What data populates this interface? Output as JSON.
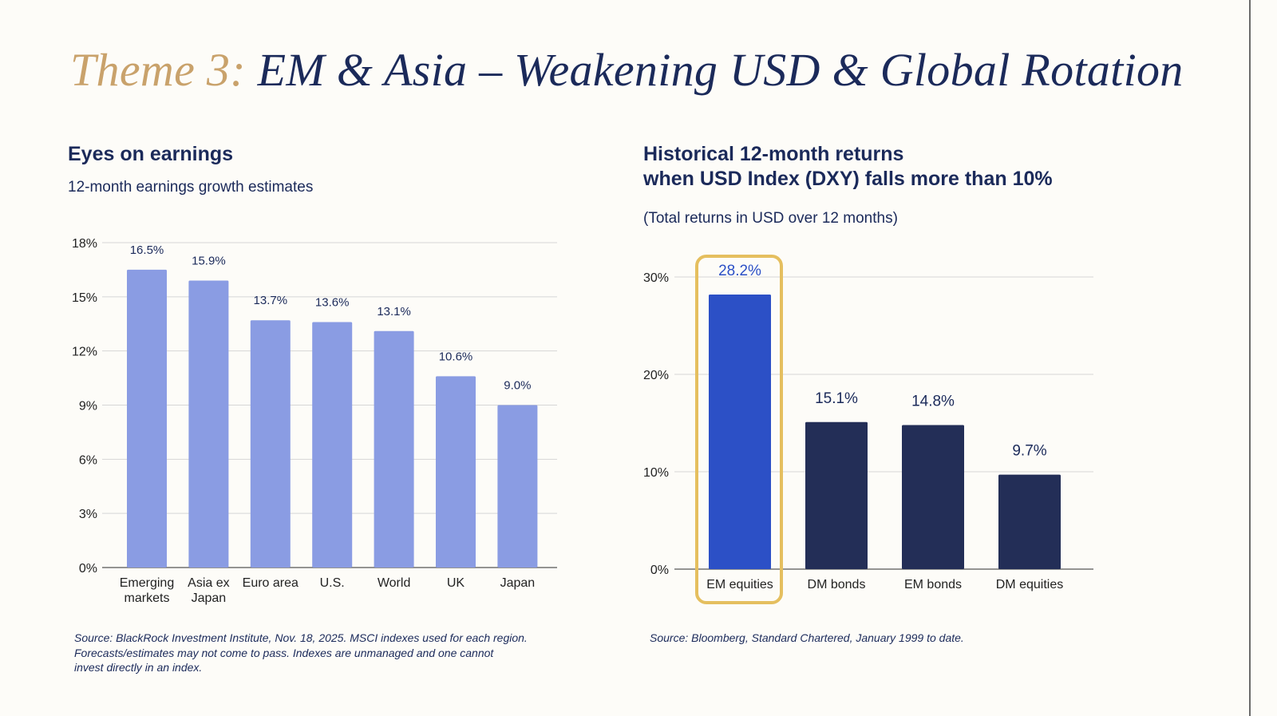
{
  "slide": {
    "title_prefix": "Theme 3:",
    "title_main": "EM & Asia – Weakening USD & Global Rotation",
    "colors": {
      "gold": "#C9A26B",
      "navy": "#1B2A5A",
      "background": "#FDFCF8"
    }
  },
  "left": {
    "heading": "Eyes on earnings",
    "subtitle": "12-month earnings growth estimates",
    "source_lines": [
      "Source: BlackRock Investment Institute, Nov. 18, 2025. MSCI indexes used for each region.",
      "Forecasts/estimates may not come to pass. Indexes are unmanaged and one cannot",
      "invest directly in an index."
    ]
  },
  "right": {
    "heading_lines": [
      "Historical 12-month returns",
      "when USD Index (DXY) falls more than 10%"
    ],
    "subtitle": "(Total returns in USD over 12 months)",
    "source": "Source: Bloomberg, Standard Chartered, January 1999 to date."
  },
  "chart_data": [
    {
      "type": "bar",
      "title": "Eyes on earnings",
      "subtitle": "12-month earnings growth estimates",
      "categories": [
        [
          "Emerging",
          "markets"
        ],
        [
          "Asia ex",
          "Japan"
        ],
        [
          "Euro area"
        ],
        [
          "U.S."
        ],
        [
          "World"
        ],
        [
          "UK"
        ],
        [
          "Japan"
        ]
      ],
      "values": [
        16.5,
        15.9,
        13.7,
        13.6,
        13.1,
        10.6,
        9.0
      ],
      "data_labels": [
        "16.5%",
        "15.9%",
        "13.7%",
        "13.6%",
        "13.1%",
        "10.6%",
        "9.0%"
      ],
      "yticks": [
        "0%",
        "3%",
        "6%",
        "9%",
        "12%",
        "15%",
        "18%"
      ],
      "ylim": [
        0,
        18
      ],
      "grid": true,
      "bar_color": "#8A9CE3",
      "label_color": "#1B2A5A"
    },
    {
      "type": "bar",
      "title": "Historical 12-month returns when USD Index (DXY) falls more than 10%",
      "subtitle": "(Total returns in USD over 12 months)",
      "categories": [
        [
          "EM equities"
        ],
        [
          "DM bonds"
        ],
        [
          "EM bonds"
        ],
        [
          "DM equities"
        ]
      ],
      "values": [
        28.2,
        15.1,
        14.8,
        9.7
      ],
      "data_labels": [
        "28.2%",
        "15.1%",
        "14.8%",
        "9.7%"
      ],
      "yticks": [
        "0%",
        "10%",
        "20%",
        "30%"
      ],
      "ylim": [
        0,
        30
      ],
      "grid": true,
      "highlighted_category": "EM equities",
      "highlight_color": "#2C50C6",
      "bar_color": "#232E57",
      "highlight_box_color": "#E5BF5F"
    }
  ]
}
